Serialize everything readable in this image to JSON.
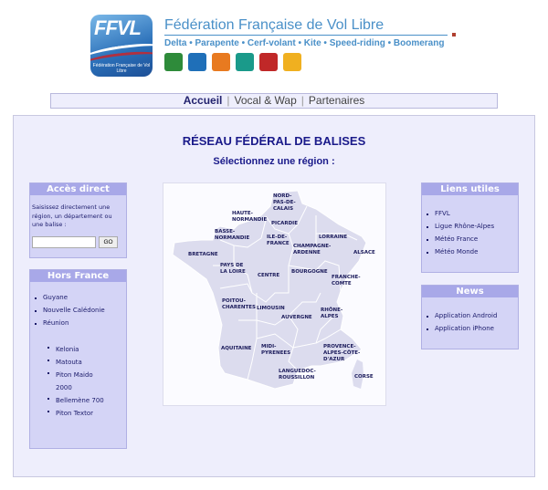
{
  "header": {
    "logo_text": "FFVL",
    "logo_subtext": "Fédération Française de Vol Libre",
    "title": "Fédération Française de Vol Libre",
    "subtitle": "Delta • Parapente • Cerf-volant • Kite • Speed-riding • Boomerang",
    "sport_icons": [
      {
        "name": "delta-icon",
        "color": "#2e8b3a"
      },
      {
        "name": "parapente-icon",
        "color": "#1f6fb8"
      },
      {
        "name": "cerf-volant-icon",
        "color": "#e87a20"
      },
      {
        "name": "kite-icon",
        "color": "#1a9a8a"
      },
      {
        "name": "speed-riding-icon",
        "color": "#c02828"
      },
      {
        "name": "boomerang-icon",
        "color": "#f0b020"
      }
    ]
  },
  "nav": {
    "items": [
      "Accueil",
      "Vocal & Wap",
      "Partenaires"
    ],
    "active": "Accueil"
  },
  "main": {
    "title": "RÉSEAU FÉDÉRAL DE BALISES",
    "subtitle": "Sélectionnez une région :"
  },
  "acces_direct": {
    "title": "Accès direct",
    "text": "Saisissez directement une région, un département ou une balise :",
    "input_value": "",
    "go_label": "GO"
  },
  "hors_france": {
    "title": "Hors France",
    "items": [
      "Guyane",
      "Nouvelle Calédonie",
      "Réunion"
    ],
    "sub_items": [
      "Kelonia",
      "Matouta",
      "Piton Maido 2000",
      "Bellemène 700",
      "Piton Textor"
    ]
  },
  "liens_utiles": {
    "title": "Liens utiles",
    "items": [
      "FFVL",
      "Ligue Rhône-Alpes",
      "Météo France",
      "Météo Monde"
    ]
  },
  "news": {
    "title": "News",
    "items": [
      "Application Android",
      "Application iPhone"
    ]
  },
  "map": {
    "regions": [
      "NORD-PAS-DE-CALAIS",
      "HAUTE-NORMANDIE",
      "PICARDIE",
      "BASSE-NORMANDIE",
      "ILE-DE-FRANCE",
      "LORRAINE",
      "CHAMPAGNE-ARDENNE",
      "ALSACE",
      "BRETAGNE",
      "PAYS DE LA LOIRE",
      "CENTRE",
      "BOURGOGNE",
      "FRANCHE-COMTE",
      "POITOU-CHARENTES",
      "LIMOUSIN",
      "AUVERGNE",
      "RHÔNE-ALPES",
      "AQUITAINE",
      "MIDI-PYRENEES",
      "PROVENCE-ALPES-CÔTE-D'AZUR",
      "LANGUEDOC-ROUSSILLON",
      "CORSE"
    ],
    "fill": "#dcdcee"
  }
}
